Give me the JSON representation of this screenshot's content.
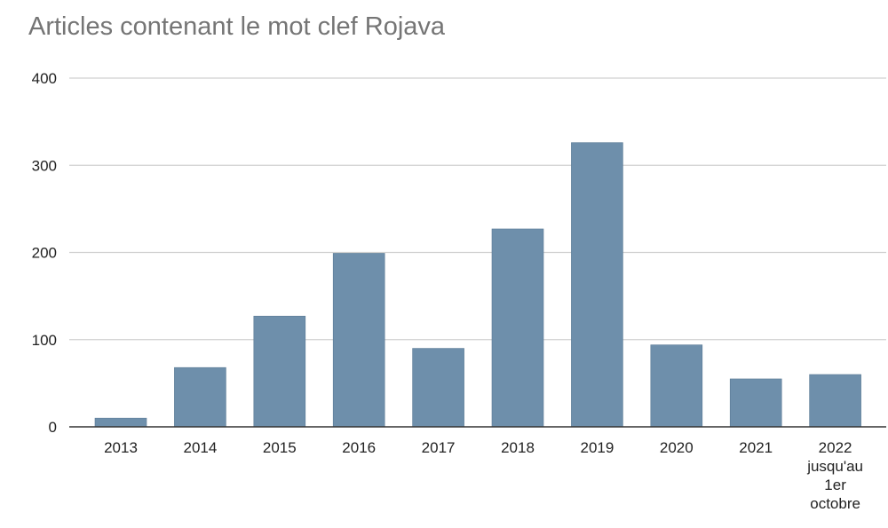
{
  "chart_data": {
    "type": "bar",
    "title": "Articles contenant le mot clef Rojava",
    "xlabel": "",
    "ylabel": "",
    "categories": [
      [
        "2013"
      ],
      [
        "2014"
      ],
      [
        "2015"
      ],
      [
        "2016"
      ],
      [
        "2017"
      ],
      [
        "2018"
      ],
      [
        "2019"
      ],
      [
        "2020"
      ],
      [
        "2021"
      ],
      [
        "2022",
        "jusqu'au",
        "1er",
        "octobre"
      ]
    ],
    "values": [
      10,
      68,
      127,
      199,
      90,
      227,
      326,
      94,
      55,
      60
    ],
    "ylim": [
      0,
      400
    ],
    "yticks": [
      "0",
      "100",
      "200",
      "300",
      "400"
    ],
    "grid": true,
    "bar_color": "#6e8fab"
  }
}
